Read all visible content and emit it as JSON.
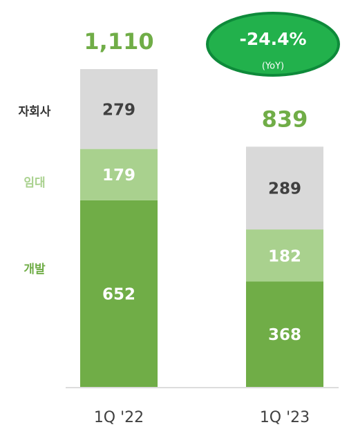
{
  "chart_data": {
    "type": "stacked_bar",
    "categories": [
      "1Q '22",
      "1Q '23"
    ],
    "series": [
      {
        "name": "개발",
        "color": "#70ad47",
        "label_color": "#ffffff",
        "values": [
          652,
          368
        ]
      },
      {
        "name": "임대",
        "color": "#a9d18e",
        "label_color": "#ffffff",
        "values": [
          179,
          182
        ]
      },
      {
        "name": "자회사",
        "color": "#d9d9d9",
        "label_color": "#404040",
        "values": [
          279,
          289
        ]
      }
    ],
    "totals": [
      1110,
      839
    ],
    "total_labels": [
      "1,110",
      "839"
    ],
    "annotation": {
      "text": "-24.4%",
      "subtext": "(YoY)"
    }
  }
}
